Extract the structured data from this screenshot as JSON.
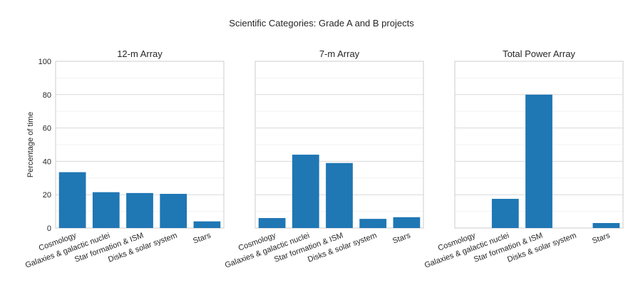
{
  "suptitle": "Scientific Categories: Grade A and B projects",
  "colors": {
    "bar": "#1f77b4",
    "grid": "#d9d9d9",
    "minor_grid": "#efefef",
    "spine": "#cccccc",
    "text": "#262626"
  },
  "chart_data": [
    {
      "type": "bar",
      "title": "12-m Array",
      "ylabel": "Percentage of time",
      "categories": [
        "Cosmology",
        "Galaxies & galactic nuclei",
        "Star formation & ISM",
        "Disks & solar system",
        "Stars"
      ],
      "values": [
        33.5,
        21.5,
        21.0,
        20.5,
        4.0
      ],
      "ylim": [
        0,
        100
      ],
      "yticks": [
        0,
        20,
        40,
        60,
        80,
        100
      ],
      "grid": true
    },
    {
      "type": "bar",
      "title": "7-m Array",
      "ylabel": "",
      "categories": [
        "Cosmology",
        "Galaxies & galactic nuclei",
        "Star formation & ISM",
        "Disks & solar system",
        "Stars"
      ],
      "values": [
        6.0,
        44.0,
        39.0,
        5.5,
        6.5
      ],
      "ylim": [
        0,
        100
      ],
      "grid": true
    },
    {
      "type": "bar",
      "title": "Total Power Array",
      "ylabel": "",
      "categories": [
        "Cosmology",
        "Galaxies & galactic nuclei",
        "Star formation & ISM",
        "Disks & solar system",
        "Stars"
      ],
      "values": [
        0,
        17.5,
        80.0,
        0,
        3.0
      ],
      "ylim": [
        0,
        100
      ],
      "grid": true
    }
  ]
}
